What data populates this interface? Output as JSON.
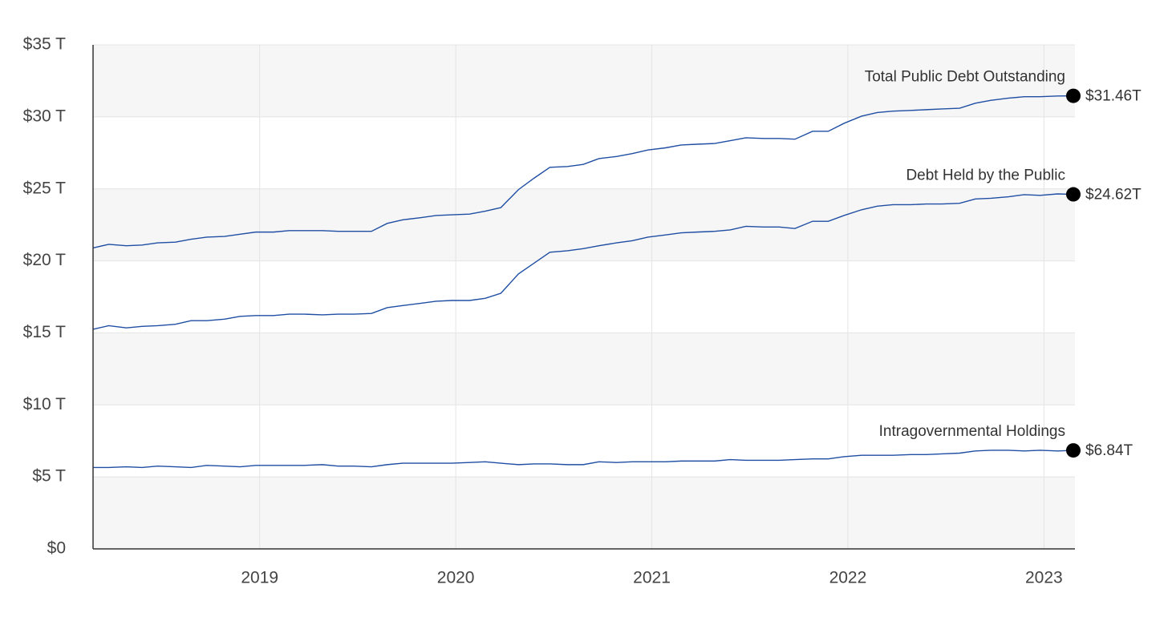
{
  "chart_data": {
    "type": "line",
    "x": [
      2018.15,
      2018.23,
      2018.32,
      2018.4,
      2018.48,
      2018.57,
      2018.65,
      2018.73,
      2018.82,
      2018.9,
      2018.98,
      2019.07,
      2019.15,
      2019.23,
      2019.32,
      2019.4,
      2019.48,
      2019.57,
      2019.65,
      2019.73,
      2019.82,
      2019.9,
      2019.98,
      2020.07,
      2020.15,
      2020.23,
      2020.32,
      2020.4,
      2020.48,
      2020.57,
      2020.65,
      2020.73,
      2020.82,
      2020.9,
      2020.98,
      2021.07,
      2021.15,
      2021.23,
      2021.32,
      2021.4,
      2021.48,
      2021.57,
      2021.65,
      2021.73,
      2021.82,
      2021.9,
      2021.98,
      2022.07,
      2022.15,
      2022.23,
      2022.32,
      2022.4,
      2022.48,
      2022.57,
      2022.65,
      2022.73,
      2022.82,
      2022.9,
      2022.98,
      2023.07,
      2023.15
    ],
    "xlim": [
      2018.15,
      2023.15
    ],
    "xticks": [
      2019,
      2020,
      2021,
      2022,
      2023
    ],
    "ylim": [
      0,
      35
    ],
    "yticks": [
      {
        "value": 0,
        "label": "$0"
      },
      {
        "value": 5,
        "label": "$5 T"
      },
      {
        "value": 10,
        "label": "$10 T"
      },
      {
        "value": 15,
        "label": "$15 T"
      },
      {
        "value": 20,
        "label": "$20 T"
      },
      {
        "value": 25,
        "label": "$25 T"
      },
      {
        "value": 30,
        "label": "$30 T"
      },
      {
        "value": 35,
        "label": "$35 T"
      }
    ],
    "grid": true,
    "series": [
      {
        "name": "Total Public Debt Outstanding",
        "color": "#1f4ea3",
        "end_label": "$31.46T",
        "values": [
          20.9,
          21.15,
          21.05,
          21.1,
          21.25,
          21.3,
          21.5,
          21.65,
          21.7,
          21.85,
          22.0,
          22.0,
          22.1,
          22.1,
          22.1,
          22.05,
          22.05,
          22.05,
          22.6,
          22.85,
          23.0,
          23.15,
          23.2,
          23.25,
          23.45,
          23.7,
          24.95,
          25.75,
          26.5,
          26.55,
          26.7,
          27.1,
          27.25,
          27.45,
          27.7,
          27.85,
          28.05,
          28.1,
          28.15,
          28.35,
          28.55,
          28.5,
          28.5,
          28.45,
          29.0,
          29.0,
          29.55,
          30.05,
          30.3,
          30.4,
          30.45,
          30.5,
          30.55,
          30.6,
          30.95,
          31.15,
          31.3,
          31.4,
          31.4,
          31.45,
          31.46
        ]
      },
      {
        "name": "Debt Held by the Public",
        "color": "#1f4ea3",
        "end_label": "$24.62T",
        "values": [
          15.25,
          15.5,
          15.35,
          15.45,
          15.5,
          15.6,
          15.85,
          15.85,
          15.95,
          16.15,
          16.2,
          16.2,
          16.3,
          16.3,
          16.25,
          16.3,
          16.3,
          16.35,
          16.75,
          16.9,
          17.05,
          17.2,
          17.25,
          17.25,
          17.4,
          17.75,
          19.1,
          19.85,
          20.6,
          20.7,
          20.85,
          21.05,
          21.25,
          21.4,
          21.65,
          21.8,
          21.95,
          22.0,
          22.05,
          22.15,
          22.4,
          22.35,
          22.35,
          22.25,
          22.75,
          22.75,
          23.15,
          23.55,
          23.8,
          23.9,
          23.9,
          23.95,
          23.95,
          24.0,
          24.3,
          24.35,
          24.45,
          24.6,
          24.55,
          24.65,
          24.62
        ]
      },
      {
        "name": "Intragovernmental Holdings",
        "color": "#1f4ea3",
        "end_label": "$6.84T",
        "values": [
          5.65,
          5.65,
          5.7,
          5.65,
          5.75,
          5.7,
          5.65,
          5.8,
          5.75,
          5.7,
          5.8,
          5.8,
          5.8,
          5.8,
          5.85,
          5.75,
          5.75,
          5.7,
          5.85,
          5.95,
          5.95,
          5.95,
          5.95,
          6.0,
          6.05,
          5.95,
          5.85,
          5.9,
          5.9,
          5.85,
          5.85,
          6.05,
          6.0,
          6.05,
          6.05,
          6.05,
          6.1,
          6.1,
          6.1,
          6.2,
          6.15,
          6.15,
          6.15,
          6.2,
          6.25,
          6.25,
          6.4,
          6.5,
          6.5,
          6.5,
          6.55,
          6.55,
          6.6,
          6.65,
          6.8,
          6.85,
          6.85,
          6.8,
          6.85,
          6.8,
          6.84
        ]
      }
    ]
  }
}
